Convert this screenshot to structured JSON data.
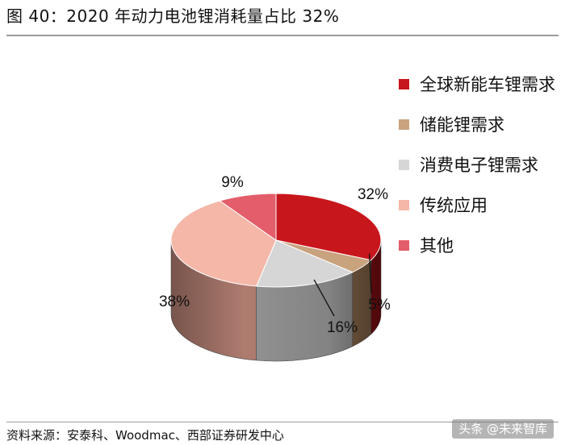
{
  "title": "图 40：2020 年动力电池锂消耗量占比 32%",
  "source": "资料来源：安泰科、Woodmac、西部证券研发中心",
  "watermark": "头条 @未来智库",
  "chart_data": {
    "type": "pie",
    "style": "3d",
    "start_angle_deg": 90,
    "direction": "clockwise",
    "legend_position": "right",
    "slices": [
      {
        "name": "全球新能车锂需求",
        "value": 32,
        "label": "32%",
        "color": "#c8161d",
        "side_color": "#8e0f14"
      },
      {
        "name": "储能锂需求",
        "value": 5,
        "label": "5%",
        "color": "#c9a27e",
        "side_color": "#8a6a4c"
      },
      {
        "name": "消费电子锂需求",
        "value": 16,
        "label": "16%",
        "color": "#d6d6d6",
        "side_color": "#9a9a9a"
      },
      {
        "name": "传统应用",
        "value": 38,
        "label": "38%",
        "color": "#f4b7a8",
        "side_color": "#b88275"
      },
      {
        "name": "其他",
        "value": 9,
        "label": "9%",
        "color": "#e35d6a",
        "side_color": "#a03a45"
      }
    ]
  }
}
